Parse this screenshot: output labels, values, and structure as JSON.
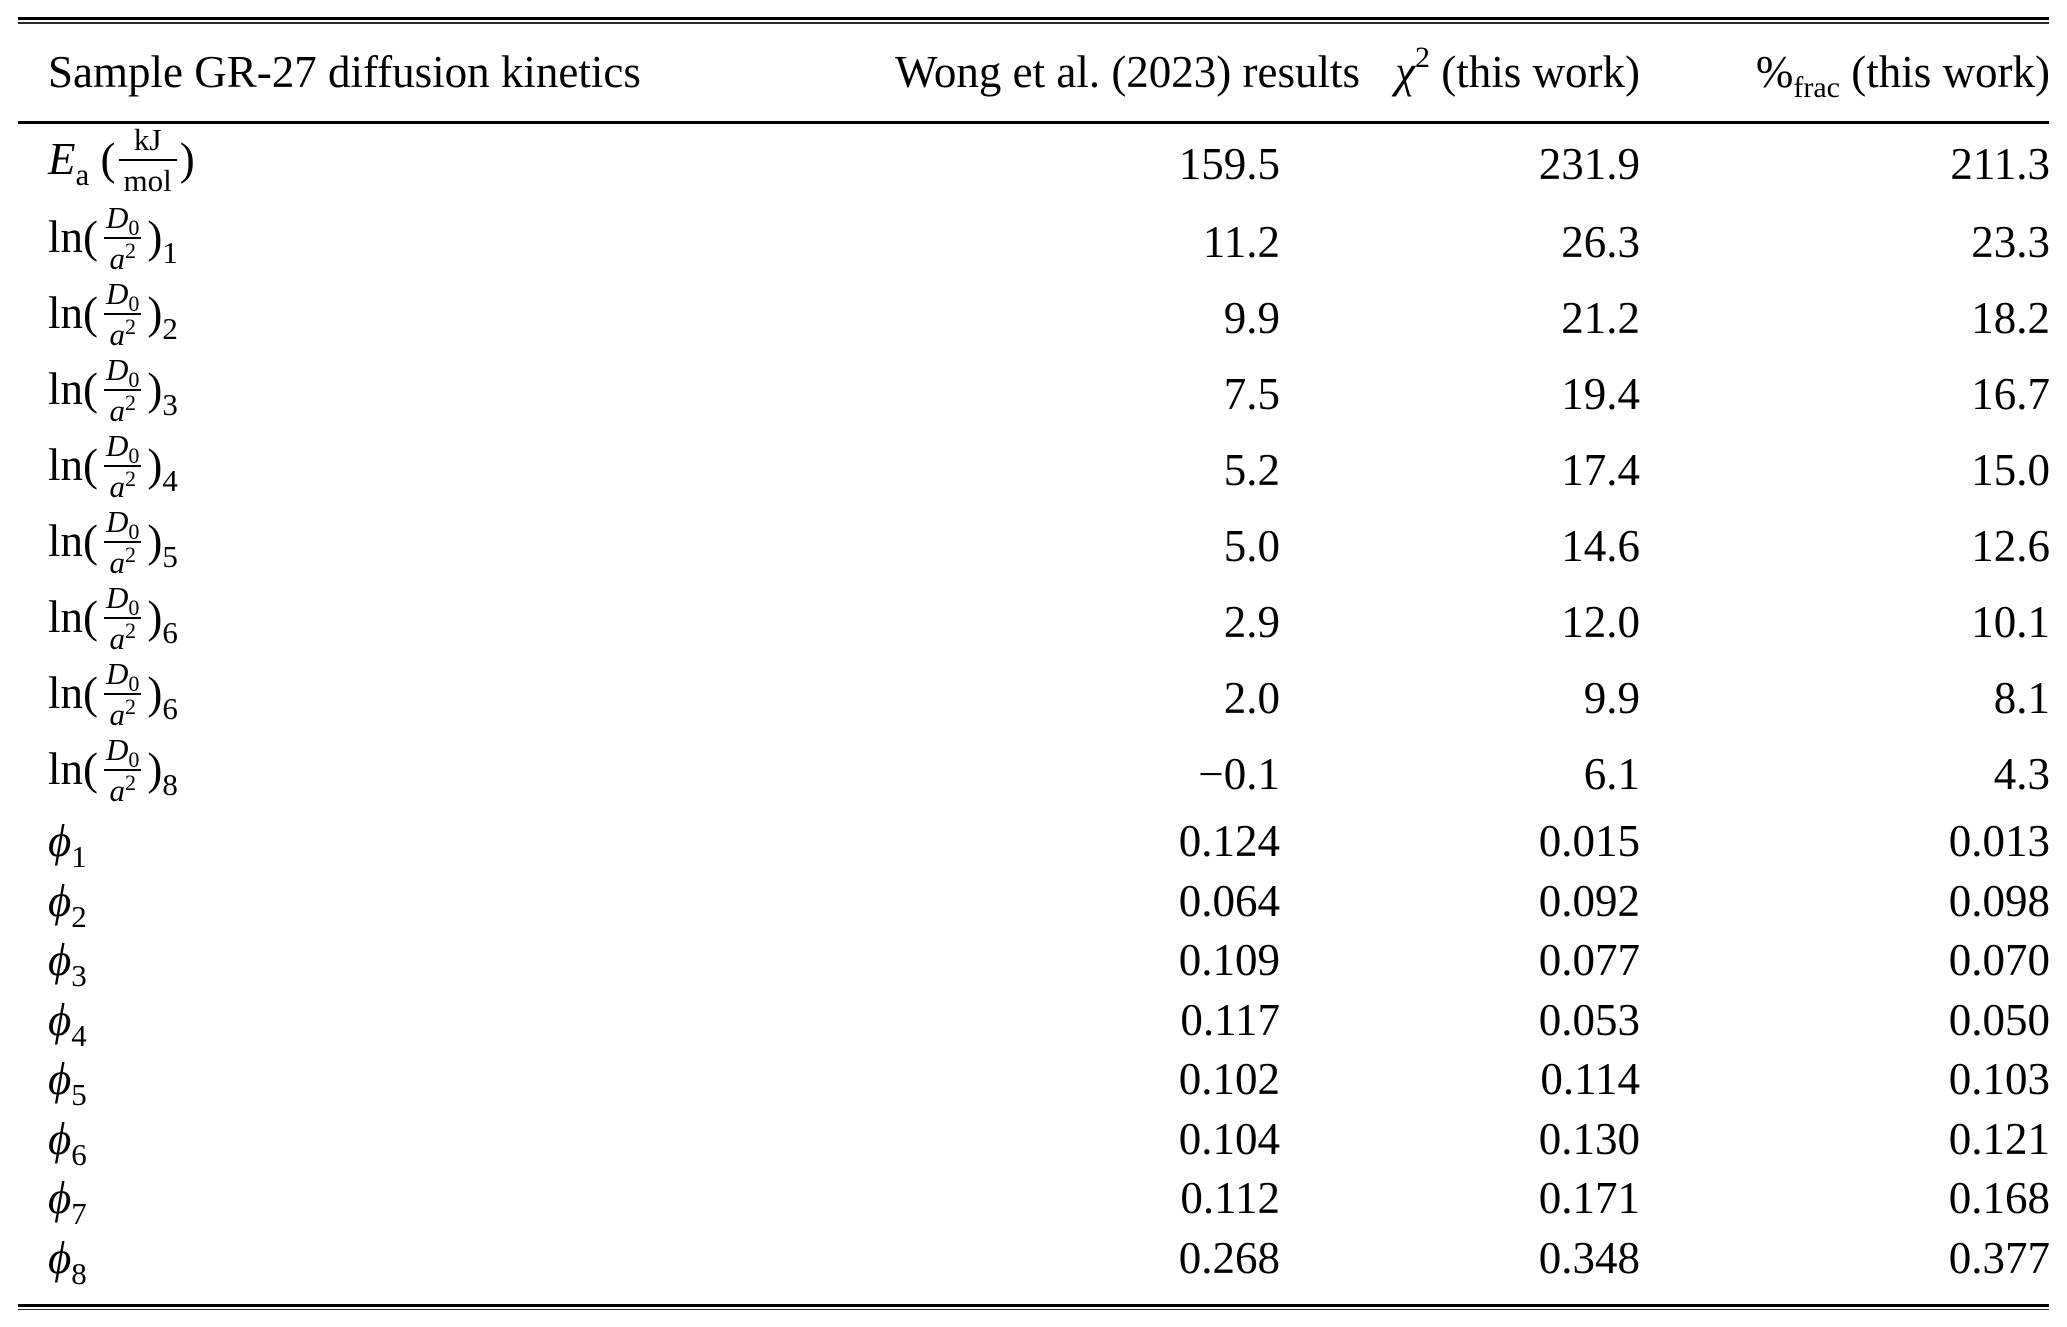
{
  "page": {
    "background_color": "#ffffff",
    "text_color": "#000000"
  },
  "table": {
    "header": {
      "col1": "Sample GR-27 diffusion kinetics",
      "col2": "Wong et al. (2023) results",
      "col3": {
        "base": "χ",
        "sup": "2",
        "rest": " (this work)"
      },
      "col4": {
        "base": "%",
        "sub": "frac",
        "rest": " (this work)"
      }
    },
    "rows": [
      {
        "label": {
          "kind": "ea",
          "sym": "E",
          "sym_sub": "a",
          "open": "(",
          "frac_num": "kJ",
          "frac_den": "mol",
          "close": ")"
        },
        "values": [
          "159.5",
          "231.9",
          "211.3"
        ]
      },
      {
        "label": {
          "kind": "ln",
          "fn": "ln",
          "open": "(",
          "num_base": "D",
          "num_sub": "0",
          "den_base": "a",
          "den_sup": "2",
          "close": ")",
          "index": "1"
        },
        "values": [
          "11.2",
          "26.3",
          "23.3"
        ]
      },
      {
        "label": {
          "kind": "ln",
          "fn": "ln",
          "open": "(",
          "num_base": "D",
          "num_sub": "0",
          "den_base": "a",
          "den_sup": "2",
          "close": ")",
          "index": "2"
        },
        "values": [
          "9.9",
          "21.2",
          "18.2"
        ]
      },
      {
        "label": {
          "kind": "ln",
          "fn": "ln",
          "open": "(",
          "num_base": "D",
          "num_sub": "0",
          "den_base": "a",
          "den_sup": "2",
          "close": ")",
          "index": "3"
        },
        "values": [
          "7.5",
          "19.4",
          "16.7"
        ]
      },
      {
        "label": {
          "kind": "ln",
          "fn": "ln",
          "open": "(",
          "num_base": "D",
          "num_sub": "0",
          "den_base": "a",
          "den_sup": "2",
          "close": ")",
          "index": "4"
        },
        "values": [
          "5.2",
          "17.4",
          "15.0"
        ]
      },
      {
        "label": {
          "kind": "ln",
          "fn": "ln",
          "open": "(",
          "num_base": "D",
          "num_sub": "0",
          "den_base": "a",
          "den_sup": "2",
          "close": ")",
          "index": "5"
        },
        "values": [
          "5.0",
          "14.6",
          "12.6"
        ]
      },
      {
        "label": {
          "kind": "ln",
          "fn": "ln",
          "open": "(",
          "num_base": "D",
          "num_sub": "0",
          "den_base": "a",
          "den_sup": "2",
          "close": ")",
          "index": "6"
        },
        "values": [
          "2.9",
          "12.0",
          "10.1"
        ]
      },
      {
        "label": {
          "kind": "ln",
          "fn": "ln",
          "open": "(",
          "num_base": "D",
          "num_sub": "0",
          "den_base": "a",
          "den_sup": "2",
          "close": ")",
          "index": "6"
        },
        "values": [
          "2.0",
          "9.9",
          "8.1"
        ]
      },
      {
        "label": {
          "kind": "ln",
          "fn": "ln",
          "open": "(",
          "num_base": "D",
          "num_sub": "0",
          "den_base": "a",
          "den_sup": "2",
          "close": ")",
          "index": "8"
        },
        "values": [
          "−0.1",
          "6.1",
          "4.3"
        ]
      },
      {
        "label": {
          "kind": "phi",
          "sym": "ϕ",
          "index": "1"
        },
        "values": [
          "0.124",
          "0.015",
          "0.013"
        ]
      },
      {
        "label": {
          "kind": "phi",
          "sym": "ϕ",
          "index": "2"
        },
        "values": [
          "0.064",
          "0.092",
          "0.098"
        ]
      },
      {
        "label": {
          "kind": "phi",
          "sym": "ϕ",
          "index": "3"
        },
        "values": [
          "0.109",
          "0.077",
          "0.070"
        ]
      },
      {
        "label": {
          "kind": "phi",
          "sym": "ϕ",
          "index": "4"
        },
        "values": [
          "0.117",
          "0.053",
          "0.050"
        ]
      },
      {
        "label": {
          "kind": "phi",
          "sym": "ϕ",
          "index": "5"
        },
        "values": [
          "0.102",
          "0.114",
          "0.103"
        ]
      },
      {
        "label": {
          "kind": "phi",
          "sym": "ϕ",
          "index": "6"
        },
        "values": [
          "0.104",
          "0.130",
          "0.121"
        ]
      },
      {
        "label": {
          "kind": "phi",
          "sym": "ϕ",
          "index": "7"
        },
        "values": [
          "0.112",
          "0.171",
          "0.168"
        ]
      },
      {
        "label": {
          "kind": "phi",
          "sym": "ϕ",
          "index": "8"
        },
        "values": [
          "0.268",
          "0.348",
          "0.377"
        ]
      }
    ]
  }
}
